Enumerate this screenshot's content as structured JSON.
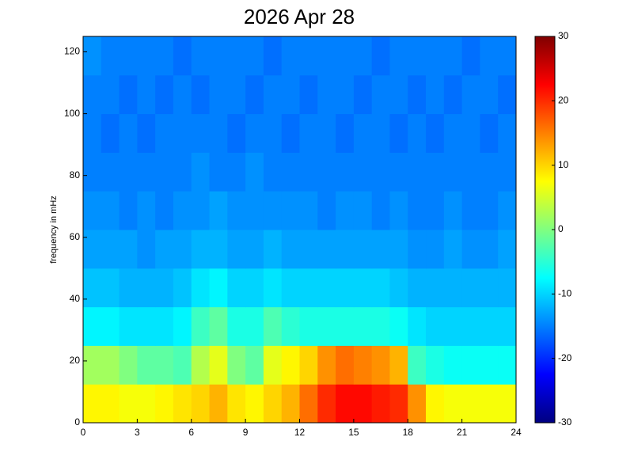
{
  "chart_data": {
    "type": "heatmap",
    "title": "2026 Apr 28",
    "ylabel": "frequency in mHz",
    "xlim": [
      0,
      24
    ],
    "xticks": [
      0,
      3,
      6,
      9,
      12,
      15,
      18,
      21,
      24
    ],
    "ylim": [
      0,
      125
    ],
    "yticks": [
      0,
      20,
      40,
      60,
      80,
      100,
      120
    ],
    "xbins": [
      0,
      1,
      2,
      3,
      4,
      5,
      6,
      7,
      8,
      9,
      10,
      11,
      12,
      13,
      14,
      15,
      16,
      17,
      18,
      19,
      20,
      21,
      22,
      23,
      24
    ],
    "ybins": [
      0,
      12.5,
      25,
      37.5,
      50,
      62.5,
      75,
      87.5,
      100,
      112.5,
      125
    ],
    "z": [
      [
        8,
        8,
        7,
        7,
        8,
        9,
        10,
        12,
        9,
        8,
        10,
        12,
        16,
        20,
        22,
        22,
        21,
        20,
        14,
        8,
        7,
        7,
        7,
        7
      ],
      [
        2,
        2,
        0,
        -2,
        -2,
        -3,
        3,
        6,
        0,
        -2,
        6,
        8,
        10,
        14,
        16,
        15,
        14,
        12,
        -4,
        -6,
        -7,
        -7,
        -7,
        -7
      ],
      [
        -8,
        -8,
        -9,
        -9,
        -9,
        -8,
        -4,
        -2,
        -6,
        -6,
        -3,
        -5,
        -6,
        -6,
        -6,
        -6,
        -6,
        -7,
        -9,
        -10,
        -10,
        -10,
        -10,
        -10
      ],
      [
        -11,
        -11,
        -12,
        -12,
        -12,
        -11,
        -9,
        -8,
        -10,
        -10,
        -9,
        -10,
        -10,
        -10,
        -10,
        -10,
        -10,
        -11,
        -12,
        -12,
        -12,
        -12,
        -12,
        -12
      ],
      [
        -13,
        -13,
        -13,
        -14,
        -13,
        -13,
        -12,
        -12,
        -13,
        -13,
        -12,
        -13,
        -13,
        -13,
        -13,
        -13,
        -13,
        -13,
        -14,
        -14,
        -13,
        -14,
        -14,
        -13
      ],
      [
        -14,
        -14,
        -15,
        -14,
        -15,
        -14,
        -14,
        -13,
        -14,
        -14,
        -14,
        -14,
        -14,
        -15,
        -14,
        -14,
        -15,
        -14,
        -15,
        -15,
        -14,
        -15,
        -15,
        -14
      ],
      [
        -15,
        -15,
        -15,
        -15,
        -15,
        -15,
        -14,
        -15,
        -15,
        -14,
        -15,
        -15,
        -15,
        -15,
        -15,
        -15,
        -15,
        -15,
        -15,
        -15,
        -15,
        -15,
        -15,
        -15
      ],
      [
        -15,
        -16,
        -15,
        -16,
        -15,
        -15,
        -15,
        -15,
        -16,
        -15,
        -15,
        -16,
        -15,
        -15,
        -16,
        -15,
        -15,
        -16,
        -15,
        -16,
        -15,
        -15,
        -16,
        -15
      ],
      [
        -15,
        -15,
        -16,
        -15,
        -16,
        -15,
        -16,
        -15,
        -15,
        -16,
        -15,
        -15,
        -16,
        -15,
        -15,
        -16,
        -15,
        -15,
        -16,
        -15,
        -16,
        -15,
        -15,
        -16
      ],
      [
        -14,
        -15,
        -15,
        -15,
        -15,
        -16,
        -15,
        -15,
        -15,
        -15,
        -16,
        -15,
        -15,
        -15,
        -15,
        -15,
        -16,
        -15,
        -15,
        -15,
        -15,
        -16,
        -15,
        -15
      ]
    ],
    "colorbar": {
      "lim": [
        -30,
        30
      ],
      "ticks": [
        -30,
        -20,
        -10,
        0,
        10,
        20,
        30
      ]
    }
  }
}
